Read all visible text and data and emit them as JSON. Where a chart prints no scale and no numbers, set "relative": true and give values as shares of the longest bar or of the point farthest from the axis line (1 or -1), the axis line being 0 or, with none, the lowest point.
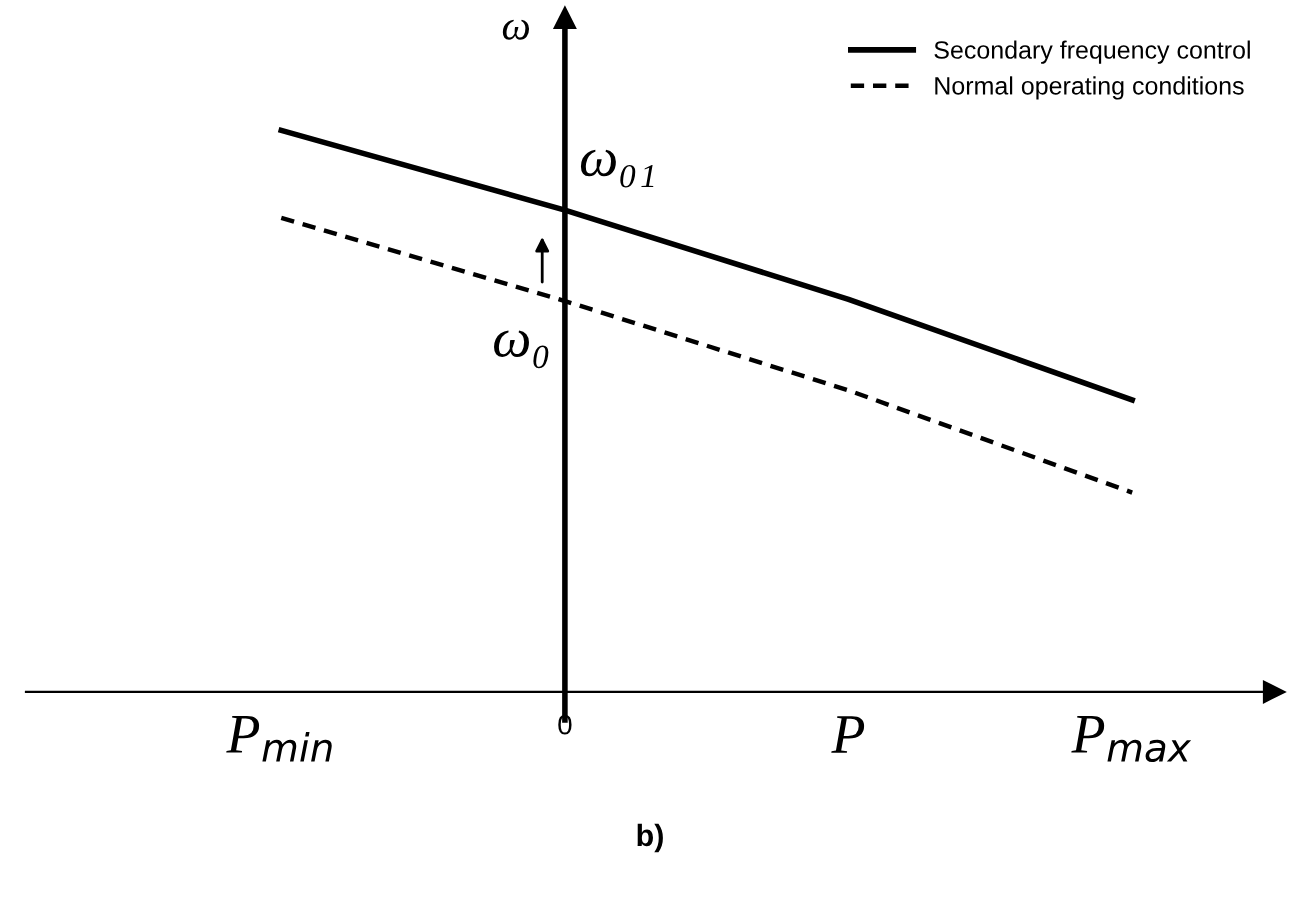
{
  "chart_data": {
    "type": "line",
    "relative": true,
    "ylabel": "ω",
    "categories": [
      "P$_{min}$",
      "0",
      "P",
      "P$_{max}$"
    ],
    "series": [
      {
        "name": "Secondary frequency control",
        "color": "#000000",
        "line_style": "solid",
        "values": [
          1,
          0.858,
          0.699,
          0.52
        ]
      },
      {
        "name": "Normal operating conditions",
        "color": "#000000",
        "line_style": "dashed",
        "values": [
          0.844,
          0.696,
          0.537,
          0.355
        ]
      }
    ],
    "legend": "top right",
    "marker": "none",
    "annotations": [
      {
        "text": "ω₀₁",
        "x": "0",
        "y": 0.858
      },
      {
        "text": "ω₀",
        "x": "0",
        "y": 0.696
      },
      "b)"
    ]
  }
}
